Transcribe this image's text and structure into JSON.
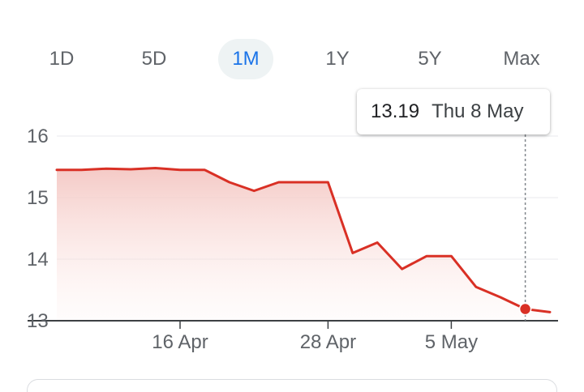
{
  "range_tabs": [
    {
      "label": "1D",
      "active": false
    },
    {
      "label": "5D",
      "active": false
    },
    {
      "label": "1M",
      "active": true
    },
    {
      "label": "1Y",
      "active": false
    },
    {
      "label": "5Y",
      "active": false
    },
    {
      "label": "Max",
      "active": false
    }
  ],
  "tooltip": {
    "value": "13.19",
    "date": "Thu 8 May"
  },
  "chart_data": {
    "type": "area",
    "x": [
      "9 Apr",
      "10 Apr",
      "11 Apr",
      "14 Apr",
      "15 Apr",
      "16 Apr",
      "17 Apr",
      "22 Apr",
      "23 Apr",
      "24 Apr",
      "25 Apr",
      "28 Apr",
      "29 Apr",
      "30 Apr",
      "1 May",
      "2 May",
      "5 May",
      "6 May",
      "7 May",
      "8 May",
      "9 May"
    ],
    "x_ticks": [
      "16 Apr",
      "28 Apr",
      "5 May"
    ],
    "y_ticks": [
      13,
      14,
      15,
      16
    ],
    "ylim": [
      13,
      16
    ],
    "series": [
      {
        "values": [
          15.45,
          15.45,
          15.47,
          15.46,
          15.48,
          15.45,
          15.45,
          15.25,
          15.11,
          15.25,
          15.25,
          15.25,
          14.1,
          14.27,
          13.84,
          14.05,
          14.05,
          13.55,
          13.38,
          13.19,
          13.14
        ]
      }
    ],
    "highlight": {
      "date": "8 May",
      "value": 13.19
    },
    "colors": {
      "line": "#d93025",
      "fill_top": "#f4c7c3",
      "grid": "#e8eaed",
      "axis": "#3c4043",
      "tick_text": "#5f6368"
    },
    "grid": true
  }
}
